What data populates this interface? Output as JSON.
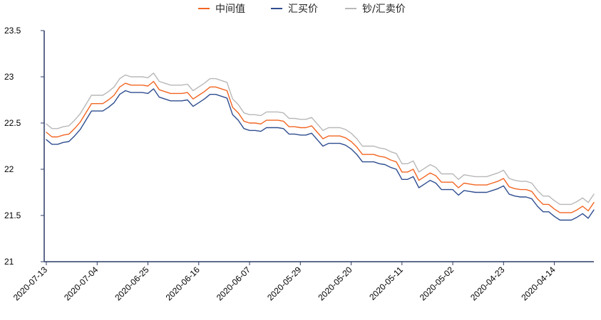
{
  "chart_data": {
    "type": "line",
    "ylim": [
      21,
      23.5
    ],
    "yticks": [
      "21",
      "21.5",
      "22",
      "22.5",
      "23",
      "23.5"
    ],
    "xticks": [
      {
        "index": 0,
        "label": "2020-07-13"
      },
      {
        "index": 9,
        "label": "2020-07-04"
      },
      {
        "index": 18,
        "label": "2020-06-25"
      },
      {
        "index": 27,
        "label": "2020-06-16"
      },
      {
        "index": 36,
        "label": "2020-06-07"
      },
      {
        "index": 45,
        "label": "2020-05-29"
      },
      {
        "index": 54,
        "label": "2020-05-20"
      },
      {
        "index": 63,
        "label": "2020-05-11"
      },
      {
        "index": 72,
        "label": "2020-05-02"
      },
      {
        "index": 81,
        "label": "2020-04-23"
      },
      {
        "index": 90,
        "label": "2020-04-14"
      }
    ],
    "n_points": 98,
    "series": [
      {
        "name": "中间值",
        "color": "#f26522",
        "values": [
          22.4,
          22.35,
          22.35,
          22.37,
          22.38,
          22.44,
          22.51,
          22.61,
          22.71,
          22.71,
          22.71,
          22.75,
          22.8,
          22.89,
          22.93,
          22.91,
          22.91,
          22.91,
          22.9,
          22.95,
          22.86,
          22.84,
          22.82,
          22.82,
          22.82,
          22.83,
          22.76,
          22.8,
          22.84,
          22.89,
          22.89,
          22.87,
          22.85,
          22.67,
          22.61,
          22.52,
          22.5,
          22.5,
          22.49,
          22.53,
          22.53,
          22.53,
          22.52,
          22.46,
          22.46,
          22.45,
          22.45,
          22.47,
          22.4,
          22.33,
          22.36,
          22.36,
          22.36,
          22.34,
          22.3,
          22.24,
          22.16,
          22.16,
          22.16,
          22.14,
          22.13,
          22.1,
          22.08,
          21.97,
          21.97,
          22.0,
          21.88,
          21.92,
          21.96,
          21.93,
          21.86,
          21.86,
          21.86,
          21.8,
          21.85,
          21.84,
          21.83,
          21.83,
          21.83,
          21.85,
          21.87,
          21.9,
          21.81,
          21.79,
          21.78,
          21.78,
          21.76,
          21.68,
          21.62,
          21.62,
          21.57,
          21.53,
          21.53,
          21.53,
          21.56,
          21.6,
          21.55,
          21.64
        ]
      },
      {
        "name": "汇买价",
        "color": "#2e4d8f",
        "values": [
          22.32,
          22.27,
          22.27,
          22.29,
          22.3,
          22.36,
          22.43,
          22.53,
          22.63,
          22.63,
          22.63,
          22.67,
          22.72,
          22.81,
          22.85,
          22.83,
          22.83,
          22.83,
          22.82,
          22.87,
          22.78,
          22.76,
          22.74,
          22.74,
          22.74,
          22.75,
          22.68,
          22.72,
          22.76,
          22.81,
          22.81,
          22.79,
          22.77,
          22.59,
          22.53,
          22.44,
          22.42,
          22.42,
          22.41,
          22.45,
          22.45,
          22.45,
          22.44,
          22.38,
          22.38,
          22.37,
          22.37,
          22.39,
          22.32,
          22.25,
          22.28,
          22.28,
          22.28,
          22.26,
          22.22,
          22.16,
          22.08,
          22.08,
          22.08,
          22.06,
          22.05,
          22.02,
          22.0,
          21.89,
          21.89,
          21.92,
          21.8,
          21.84,
          21.88,
          21.85,
          21.78,
          21.78,
          21.78,
          21.72,
          21.77,
          21.76,
          21.75,
          21.75,
          21.75,
          21.77,
          21.79,
          21.82,
          21.73,
          21.71,
          21.7,
          21.7,
          21.68,
          21.6,
          21.54,
          21.54,
          21.49,
          21.45,
          21.45,
          21.45,
          21.48,
          21.52,
          21.47,
          21.56
        ]
      },
      {
        "name": "钞/汇卖价",
        "color": "#b8b8b8",
        "values": [
          22.49,
          22.44,
          22.44,
          22.46,
          22.47,
          22.53,
          22.6,
          22.7,
          22.8,
          22.8,
          22.8,
          22.84,
          22.89,
          22.98,
          23.02,
          23.0,
          23.0,
          23.0,
          22.99,
          23.04,
          22.95,
          22.93,
          22.91,
          22.91,
          22.91,
          22.92,
          22.85,
          22.89,
          22.93,
          22.98,
          22.98,
          22.96,
          22.94,
          22.76,
          22.7,
          22.61,
          22.59,
          22.59,
          22.58,
          22.62,
          22.62,
          22.62,
          22.61,
          22.55,
          22.55,
          22.54,
          22.54,
          22.56,
          22.49,
          22.42,
          22.45,
          22.45,
          22.45,
          22.43,
          22.39,
          22.33,
          22.25,
          22.25,
          22.25,
          22.23,
          22.22,
          22.19,
          22.17,
          22.06,
          22.06,
          22.09,
          21.97,
          22.01,
          22.05,
          22.02,
          21.95,
          21.95,
          21.95,
          21.89,
          21.94,
          21.93,
          21.92,
          21.92,
          21.92,
          21.94,
          21.96,
          21.99,
          21.9,
          21.88,
          21.87,
          21.87,
          21.85,
          21.77,
          21.71,
          21.71,
          21.66,
          21.62,
          21.62,
          21.62,
          21.65,
          21.69,
          21.64,
          21.73
        ]
      }
    ]
  }
}
